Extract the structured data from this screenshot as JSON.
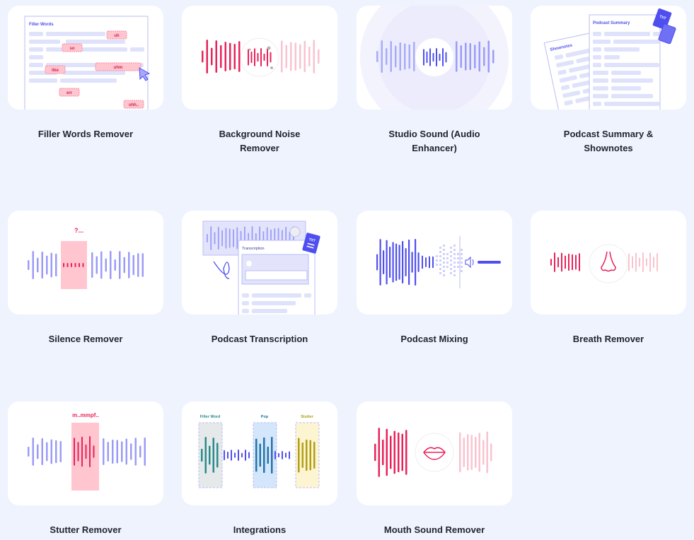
{
  "tools": [
    {
      "title": "Filler Words Remover",
      "illustration": {
        "heading": "Filler Words",
        "tags": [
          "uh",
          "so",
          "like",
          "uhm",
          "err",
          "uhh.."
        ]
      }
    },
    {
      "title": "Background Noise Remover"
    },
    {
      "title": "Studio Sound (Audio Enhancer)"
    },
    {
      "title": "Podcast Summary & Shownotes",
      "illustration": {
        "doc_front": "Podcast Summary",
        "doc_back": "Shownotes",
        "file_label": "TXT"
      }
    },
    {
      "title": "Silence Remover",
      "illustration": {
        "label": "?..."
      }
    },
    {
      "title": "Podcast Transcription",
      "illustration": {
        "panel": "Transcription",
        "file_label": "TXT"
      }
    },
    {
      "title": "Podcast Mixing",
      "illustration": {
        "icon": "speaker-icon"
      }
    },
    {
      "title": "Breath Remover",
      "illustration": {
        "icon": "nose-icon"
      }
    },
    {
      "title": "Stutter Remover",
      "illustration": {
        "label": "m..mmpf.."
      }
    },
    {
      "title": "Integrations",
      "illustration": {
        "labels": [
          "Filler Word",
          "Pop",
          "Stutter"
        ]
      }
    },
    {
      "title": "Mouth Sound Remover",
      "illustration": {
        "icon": "lips-icon"
      }
    }
  ],
  "colors": {
    "accent": "#4f4ff0",
    "pink": "#e8225a",
    "lavender": "#9b9bf7",
    "background": "#eff3fd"
  }
}
